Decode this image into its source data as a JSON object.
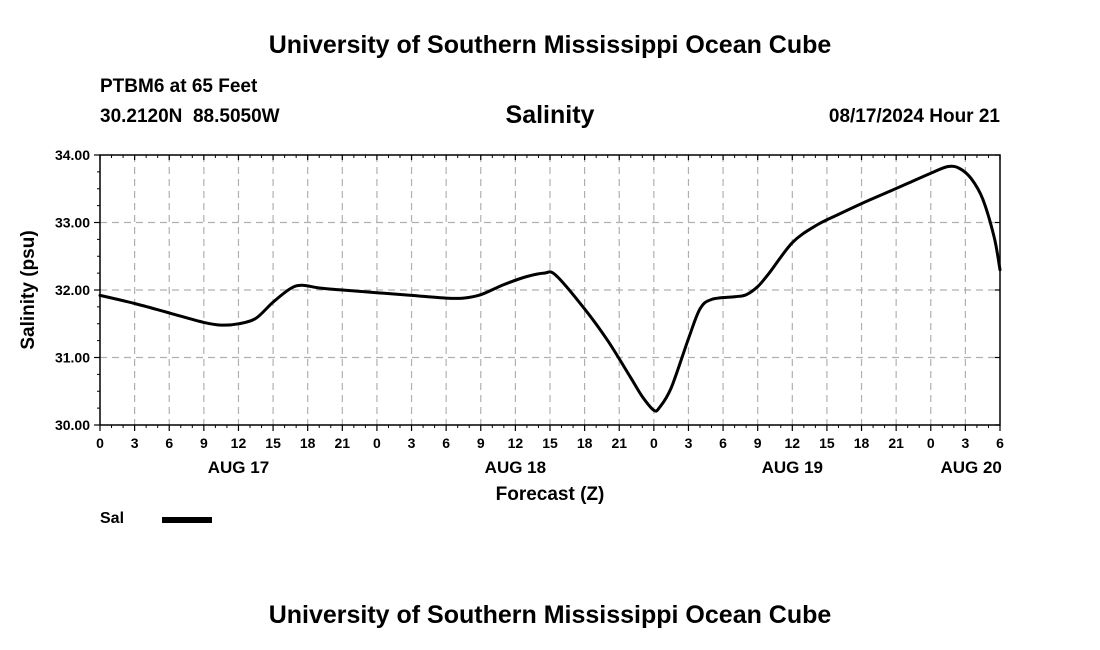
{
  "header": {
    "title": "University of Southern Mississippi Ocean Cube",
    "station": "PTBM6 at 65 Feet",
    "coords": "30.2120N  88.5050W",
    "variable": "Salinity",
    "run": "08/17/2024 Hour 21"
  },
  "footer": {
    "title": "University of Southern Mississippi Ocean Cube"
  },
  "legend": {
    "label": "Sal"
  },
  "chart_data": {
    "type": "line",
    "title": "Salinity",
    "xlabel": "Forecast (Z)",
    "ylabel": "Salinity (psu)",
    "ylim": [
      30.0,
      34.0
    ],
    "yticks": [
      "30.00",
      "31.00",
      "32.00",
      "33.00",
      "34.00"
    ],
    "xlim": [
      0,
      78
    ],
    "xtick_values": [
      0,
      3,
      6,
      9,
      12,
      15,
      18,
      21,
      24,
      27,
      30,
      33,
      36,
      39,
      42,
      45,
      48,
      51,
      54,
      57,
      60,
      63,
      66,
      69,
      72,
      75,
      78
    ],
    "xtick_labels": [
      "0",
      "3",
      "6",
      "9",
      "12",
      "15",
      "18",
      "21",
      "0",
      "3",
      "6",
      "9",
      "12",
      "15",
      "18",
      "21",
      "0",
      "3",
      "6",
      "9",
      "12",
      "15",
      "18",
      "21",
      "0",
      "3",
      "6"
    ],
    "date_labels": [
      {
        "label": "AUG 17",
        "x": 12
      },
      {
        "label": "AUG 18",
        "x": 36
      },
      {
        "label": "AUG 19",
        "x": 60
      },
      {
        "label": "AUG 20",
        "x": 75.5
      }
    ],
    "grid": true,
    "series": [
      {
        "name": "Sal",
        "color": "#000000",
        "x": [
          0,
          3,
          6,
          9,
          10.5,
          12,
          13.5,
          15,
          16.5,
          17.5,
          19,
          21,
          24,
          27,
          30,
          31.5,
          33,
          35,
          37,
          38.5,
          39.5,
          42,
          44,
          46,
          47,
          48,
          48.5,
          49.5,
          51,
          52,
          53,
          55,
          56,
          57,
          58,
          60,
          62,
          64,
          66,
          68,
          70,
          72,
          73.5,
          74.5,
          75.5,
          76.5,
          77.5,
          78
        ],
        "y": [
          31.92,
          31.8,
          31.66,
          31.52,
          31.48,
          31.5,
          31.58,
          31.82,
          32.02,
          32.07,
          32.03,
          32.0,
          31.96,
          31.92,
          31.88,
          31.88,
          31.93,
          32.08,
          32.2,
          32.25,
          32.22,
          31.72,
          31.25,
          30.7,
          30.42,
          30.22,
          30.26,
          30.55,
          31.28,
          31.72,
          31.86,
          31.9,
          31.93,
          32.05,
          32.25,
          32.7,
          32.95,
          33.12,
          33.28,
          33.43,
          33.58,
          33.73,
          33.83,
          33.8,
          33.65,
          33.35,
          32.78,
          32.3
        ]
      }
    ]
  }
}
